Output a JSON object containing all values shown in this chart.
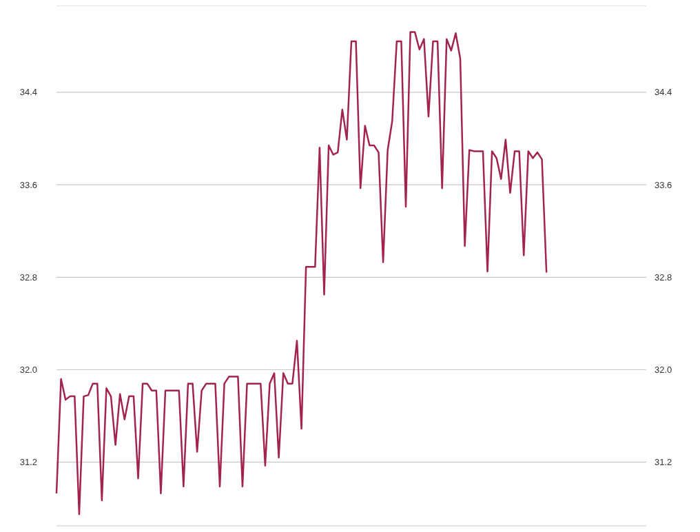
{
  "chart_data": {
    "type": "line",
    "categories": [
      null,
      null,
      null,
      null,
      null,
      null,
      null,
      null,
      null,
      null,
      null,
      null,
      null,
      null,
      null,
      null,
      null,
      null,
      null,
      null,
      null,
      null,
      null,
      null,
      null,
      null,
      null,
      null,
      null,
      null,
      null,
      null,
      null,
      null,
      null,
      null,
      null,
      null,
      null,
      null,
      null,
      null,
      null,
      null,
      null,
      null,
      null,
      null,
      null,
      null,
      null,
      null,
      null,
      null,
      null,
      null,
      null,
      null,
      null,
      null,
      null,
      null,
      null,
      null,
      null,
      null,
      null,
      null,
      null,
      null,
      null,
      null,
      null,
      null,
      null,
      null,
      null,
      null,
      null,
      null,
      null,
      null,
      null,
      null,
      null,
      null,
      null,
      null,
      null,
      null,
      null,
      null,
      null,
      null,
      null,
      null,
      null,
      null,
      null,
      null,
      null,
      null,
      null,
      null,
      null,
      null,
      null,
      null,
      null,
      null,
      null,
      null,
      null,
      null,
      null,
      null,
      null,
      null,
      null,
      null,
      null,
      null,
      null,
      null,
      null,
      null,
      null,
      null,
      null,
      null,
      null
    ],
    "series": [
      {
        "color": "#a3234f",
        "values": [
          30.93,
          31.92,
          31.74,
          31.77,
          31.77,
          30.75,
          31.77,
          31.78,
          31.88,
          31.88,
          30.87,
          31.84,
          31.77,
          31.35,
          31.79,
          31.57,
          31.77,
          31.77,
          31.06,
          31.88,
          31.88,
          31.82,
          31.82,
          30.93,
          31.82,
          31.82,
          31.82,
          31.82,
          30.99,
          31.88,
          31.88,
          31.29,
          31.82,
          31.88,
          31.88,
          31.88,
          30.99,
          31.88,
          31.94,
          31.94,
          31.94,
          30.99,
          31.88,
          31.88,
          31.88,
          31.88,
          31.17,
          31.88,
          31.97,
          31.24,
          31.97,
          31.88,
          31.88,
          32.25,
          31.49,
          32.89,
          32.89,
          32.89,
          33.92,
          32.65,
          33.94,
          33.86,
          33.88,
          34.25,
          33.99,
          34.84,
          34.84,
          33.57,
          34.11,
          33.94,
          33.94,
          33.88,
          32.93,
          33.9,
          34.15,
          34.84,
          34.84,
          33.41,
          34.92,
          34.92,
          34.77,
          34.86,
          34.19,
          34.84,
          34.84,
          33.57,
          34.86,
          34.76,
          34.91,
          34.69,
          33.07,
          33.9,
          33.89,
          33.89,
          33.89,
          32.85,
          33.89,
          33.83,
          33.65,
          33.99,
          33.53,
          33.89,
          33.89,
          32.99,
          33.89,
          33.83,
          33.88,
          33.82,
          32.84,
          null,
          null,
          null,
          null,
          null,
          null,
          null,
          null,
          null,
          null,
          null,
          null,
          null,
          null,
          null,
          null,
          null,
          null,
          null,
          null,
          null,
          null
        ]
      }
    ],
    "ylim": [
      30.65,
      35.15
    ],
    "yticks": [
      {
        "value": 31.2,
        "label": "31.2"
      },
      {
        "value": 32.0,
        "label": "32.0"
      },
      {
        "value": 32.8,
        "label": "32.8"
      },
      {
        "value": 33.6,
        "label": "33.6"
      },
      {
        "value": 34.4,
        "label": "34.4"
      }
    ],
    "y2lim": [
      30.65,
      35.15
    ],
    "y2ticks": [
      {
        "value": 31.2,
        "label": "31.2"
      },
      {
        "value": 32.0,
        "label": "32.0"
      },
      {
        "value": 32.8,
        "label": "32.8"
      },
      {
        "value": 33.6,
        "label": "33.6"
      },
      {
        "value": 34.4,
        "label": "34.4"
      }
    ],
    "grid": "y"
  }
}
